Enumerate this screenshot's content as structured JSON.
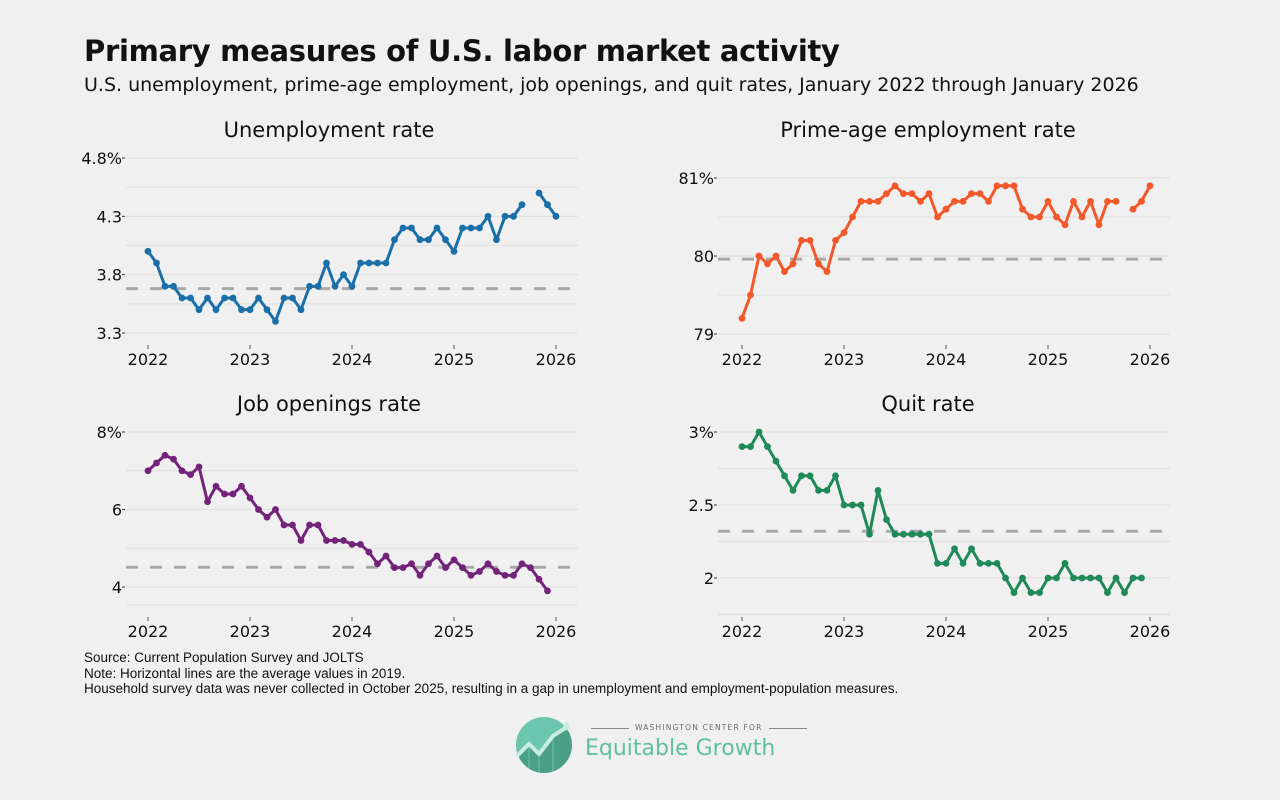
{
  "title": "Primary measures of U.S. labor market activity",
  "subtitle": "U.S. unemployment, prime-age employment, job openings, and quit rates, January 2022 through January 2026",
  "footer": {
    "source": "Source: Current Population Survey and JOLTS",
    "note": "Note: Horizontal lines are the average values in 2019.",
    "gap_note": "Household survey data was never collected in October 2025, resulting in a gap in unemployment and employment-population measures."
  },
  "logo": {
    "top_text": "WASHINGTON CENTER FOR",
    "name": "Equitable Growth"
  },
  "chart_data": [
    {
      "type": "line",
      "title": "Unemployment rate",
      "color": "#1a6fa8",
      "start": "2022-01",
      "x_ticks": [
        "2022",
        "2023",
        "2024",
        "2025",
        "2026"
      ],
      "y_ticks": [
        "4.8%",
        "4.3",
        "3.8",
        "3.3"
      ],
      "y_tick_values": [
        4.8,
        4.3,
        3.8,
        3.3
      ],
      "ylim": [
        3.3,
        4.8
      ],
      "grid": true,
      "reference_2019_avg": 3.68,
      "values": [
        4.0,
        3.9,
        3.7,
        3.7,
        3.6,
        3.6,
        3.5,
        3.6,
        3.5,
        3.6,
        3.6,
        3.5,
        3.5,
        3.6,
        3.5,
        3.4,
        3.6,
        3.6,
        3.5,
        3.7,
        3.7,
        3.9,
        3.7,
        3.8,
        3.7,
        3.9,
        3.9,
        3.9,
        3.9,
        4.1,
        4.2,
        4.2,
        4.1,
        4.1,
        4.2,
        4.1,
        4.0,
        4.2,
        4.2,
        4.2,
        4.3,
        4.1,
        4.3,
        4.3,
        4.4,
        null,
        4.5,
        4.4,
        4.3
      ]
    },
    {
      "type": "line",
      "title": "Prime-age employment rate",
      "color": "#f2592a",
      "start": "2022-01",
      "x_ticks": [
        "2022",
        "2023",
        "2024",
        "2025",
        "2026"
      ],
      "y_ticks": [
        "81%",
        "80",
        "79"
      ],
      "y_tick_values": [
        81,
        80,
        79
      ],
      "ylim": [
        79,
        81
      ],
      "grid": true,
      "reference_2019_avg": 79.96,
      "values": [
        79.2,
        79.5,
        80.0,
        79.9,
        80.0,
        79.8,
        79.9,
        80.2,
        80.2,
        79.9,
        79.8,
        80.2,
        80.3,
        80.5,
        80.7,
        80.7,
        80.7,
        80.8,
        80.9,
        80.8,
        80.8,
        80.7,
        80.8,
        80.5,
        80.6,
        80.7,
        80.7,
        80.8,
        80.8,
        80.7,
        80.9,
        80.9,
        80.9,
        80.6,
        80.5,
        80.5,
        80.7,
        80.5,
        80.4,
        80.7,
        80.5,
        80.7,
        80.4,
        80.7,
        80.7,
        null,
        80.6,
        80.7,
        80.9
      ]
    },
    {
      "type": "line",
      "title": "Job openings rate",
      "color": "#74237a",
      "start": "2022-01",
      "x_ticks": [
        "2022",
        "2023",
        "2024",
        "2025",
        "2026"
      ],
      "y_ticks": [
        "8%",
        "6",
        "4"
      ],
      "y_tick_values": [
        8,
        6,
        4
      ],
      "ylim": [
        3.55,
        8.0
      ],
      "grid": true,
      "reference_2019_avg": 4.51,
      "values": [
        7.0,
        7.2,
        7.4,
        7.3,
        7.0,
        6.9,
        7.1,
        6.2,
        6.6,
        6.4,
        6.4,
        6.6,
        6.3,
        6.0,
        5.8,
        6.0,
        5.6,
        5.6,
        5.2,
        5.6,
        5.6,
        5.2,
        5.2,
        5.2,
        5.1,
        5.1,
        4.9,
        4.6,
        4.8,
        4.5,
        4.5,
        4.6,
        4.3,
        4.6,
        4.8,
        4.5,
        4.7,
        4.5,
        4.3,
        4.4,
        4.6,
        4.4,
        4.3,
        4.3,
        4.6,
        4.5,
        4.2,
        3.9
      ]
    },
    {
      "type": "line",
      "title": "Quit rate",
      "color": "#1f8a57",
      "start": "2022-01",
      "x_ticks": [
        "2022",
        "2023",
        "2024",
        "2025",
        "2026"
      ],
      "y_ticks": [
        "3%",
        "2.5",
        "2"
      ],
      "y_tick_values": [
        3.0,
        2.5,
        2.0
      ],
      "ylim": [
        1.75,
        3.0
      ],
      "grid": true,
      "reference_2019_avg": 2.32,
      "values": [
        2.9,
        2.9,
        3.0,
        2.9,
        2.8,
        2.7,
        2.6,
        2.7,
        2.7,
        2.6,
        2.6,
        2.7,
        2.5,
        2.5,
        2.5,
        2.3,
        2.6,
        2.4,
        2.3,
        2.3,
        2.3,
        2.3,
        2.3,
        2.1,
        2.1,
        2.2,
        2.1,
        2.2,
        2.1,
        2.1,
        2.1,
        2.0,
        1.9,
        2.0,
        1.9,
        1.9,
        2.0,
        2.0,
        2.1,
        2.0,
        2.0,
        2.0,
        2.0,
        1.9,
        2.0,
        1.9,
        2.0,
        2.0
      ]
    }
  ]
}
